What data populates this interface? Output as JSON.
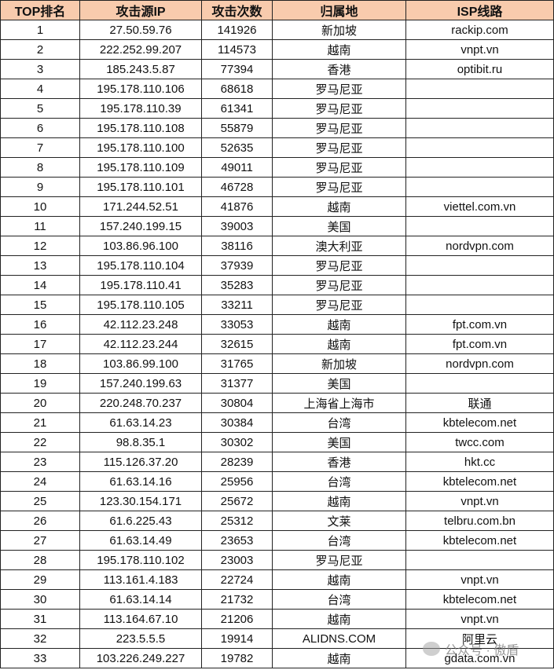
{
  "table": {
    "header": [
      "TOP排名",
      "攻击源IP",
      "攻击次数",
      "归属地",
      "ISP线路"
    ],
    "rows": [
      [
        "1",
        "27.50.59.76",
        "141926",
        "新加坡",
        "rackip.com"
      ],
      [
        "2",
        "222.252.99.207",
        "114573",
        "越南",
        "vnpt.vn"
      ],
      [
        "3",
        "185.243.5.87",
        "77394",
        "香港",
        "optibit.ru"
      ],
      [
        "4",
        "195.178.110.106",
        "68618",
        "罗马尼亚",
        null
      ],
      [
        "5",
        "195.178.110.39",
        "61341",
        "罗马尼亚",
        null
      ],
      [
        "6",
        "195.178.110.108",
        "55879",
        "罗马尼亚",
        null
      ],
      [
        "7",
        "195.178.110.100",
        "52635",
        "罗马尼亚",
        null
      ],
      [
        "8",
        "195.178.110.109",
        "49011",
        "罗马尼亚",
        null
      ],
      [
        "9",
        "195.178.110.101",
        "46728",
        "罗马尼亚",
        null
      ],
      [
        "10",
        "171.244.52.51",
        "41876",
        "越南",
        "viettel.com.vn"
      ],
      [
        "11",
        "157.240.199.15",
        "39003",
        "美国",
        null
      ],
      [
        "12",
        "103.86.96.100",
        "38116",
        "澳大利亚",
        "nordvpn.com"
      ],
      [
        "13",
        "195.178.110.104",
        "37939",
        "罗马尼亚",
        null
      ],
      [
        "14",
        "195.178.110.41",
        "35283",
        "罗马尼亚",
        null
      ],
      [
        "15",
        "195.178.110.105",
        "33211",
        "罗马尼亚",
        null
      ],
      [
        "16",
        "42.112.23.248",
        "33053",
        "越南",
        "fpt.com.vn"
      ],
      [
        "17",
        "42.112.23.244",
        "32615",
        "越南",
        "fpt.com.vn"
      ],
      [
        "18",
        "103.86.99.100",
        "31765",
        "新加坡",
        "nordvpn.com"
      ],
      [
        "19",
        "157.240.199.63",
        "31377",
        "美国",
        null
      ],
      [
        "20",
        "220.248.70.237",
        "30804",
        "上海省上海市",
        "联通"
      ],
      [
        "21",
        "61.63.14.23",
        "30384",
        "台湾",
        "kbtelecom.net"
      ],
      [
        "22",
        "98.8.35.1",
        "30302",
        "美国",
        "twcc.com"
      ],
      [
        "23",
        "115.126.37.20",
        "28239",
        "香港",
        "hkt.cc"
      ],
      [
        "24",
        "61.63.14.16",
        "25956",
        "台湾",
        "kbtelecom.net"
      ],
      [
        "25",
        "123.30.154.171",
        "25672",
        "越南",
        "vnpt.vn"
      ],
      [
        "26",
        "61.6.225.43",
        "25312",
        "文莱",
        "telbru.com.bn"
      ],
      [
        "27",
        "61.63.14.49",
        "23653",
        "台湾",
        "kbtelecom.net"
      ],
      [
        "28",
        "195.178.110.102",
        "23003",
        "罗马尼亚",
        null
      ],
      [
        "29",
        "113.161.4.183",
        "22724",
        "越南",
        "vnpt.vn"
      ],
      [
        "30",
        "61.63.14.14",
        "21732",
        "台湾",
        "kbtelecom.net"
      ],
      [
        "31",
        "113.164.67.10",
        "21206",
        "越南",
        "vnpt.vn"
      ],
      [
        "32",
        "223.5.5.5",
        "19914",
        "ALIDNS.COM",
        "阿里云"
      ],
      [
        "33",
        "103.226.249.227",
        "19782",
        "越南",
        "gdata.com.vn"
      ]
    ]
  },
  "watermark": "公众号 · 傲盾"
}
